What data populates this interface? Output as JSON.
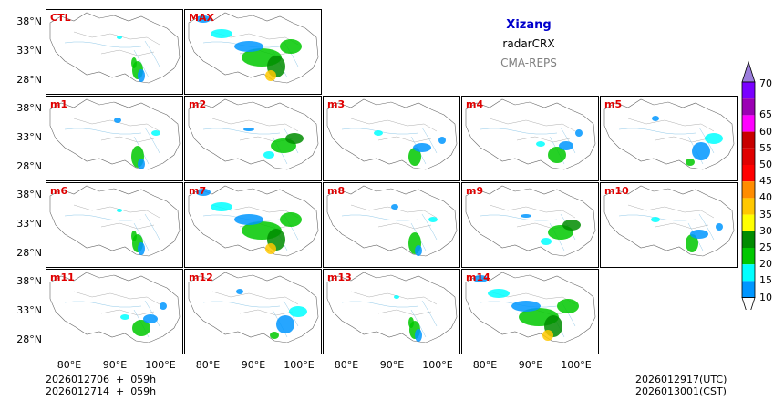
{
  "title": {
    "region": "Xizang",
    "variable": "radarCRX",
    "model": "CMA-REPS"
  },
  "panels": [
    {
      "label": "CTL",
      "row": 0,
      "col": 0
    },
    {
      "label": "MAX",
      "row": 0,
      "col": 1
    },
    {
      "label": "m1",
      "row": 1,
      "col": 0
    },
    {
      "label": "m2",
      "row": 1,
      "col": 1
    },
    {
      "label": "m3",
      "row": 1,
      "col": 2
    },
    {
      "label": "m4",
      "row": 1,
      "col": 3
    },
    {
      "label": "m5",
      "row": 1,
      "col": 4
    },
    {
      "label": "m6",
      "row": 2,
      "col": 0
    },
    {
      "label": "m7",
      "row": 2,
      "col": 1
    },
    {
      "label": "m8",
      "row": 2,
      "col": 2
    },
    {
      "label": "m9",
      "row": 2,
      "col": 3
    },
    {
      "label": "m10",
      "row": 2,
      "col": 4
    },
    {
      "label": "m11",
      "row": 3,
      "col": 0
    },
    {
      "label": "m12",
      "row": 3,
      "col": 1
    },
    {
      "label": "m13",
      "row": 3,
      "col": 2
    },
    {
      "label": "m14",
      "row": 3,
      "col": 3
    }
  ],
  "lat_labels": [
    "38°N",
    "33°N",
    "28°N"
  ],
  "lon_labels": [
    "80°E",
    "90°E",
    "100°E"
  ],
  "init_time_utc": "2026012706  +  059h",
  "init_time_cst": "2026012714  +  059h",
  "valid_time_utc": "2026012917(UTC)",
  "valid_time_cst": "2026013001(CST)",
  "colorbar": {
    "ticks": [
      "70",
      "65",
      "60",
      "55",
      "50",
      "45",
      "40",
      "35",
      "30",
      "25",
      "20",
      "15",
      "10"
    ],
    "colors": [
      "#7a00ff",
      "#9b00b4",
      "#ff00ff",
      "#c80000",
      "#e00000",
      "#ff0000",
      "#ff8c00",
      "#ffc800",
      "#ffff00",
      "#008c00",
      "#00c800",
      "#00ffff",
      "#0096ff"
    ],
    "top_color": "#9b7ddc"
  }
}
